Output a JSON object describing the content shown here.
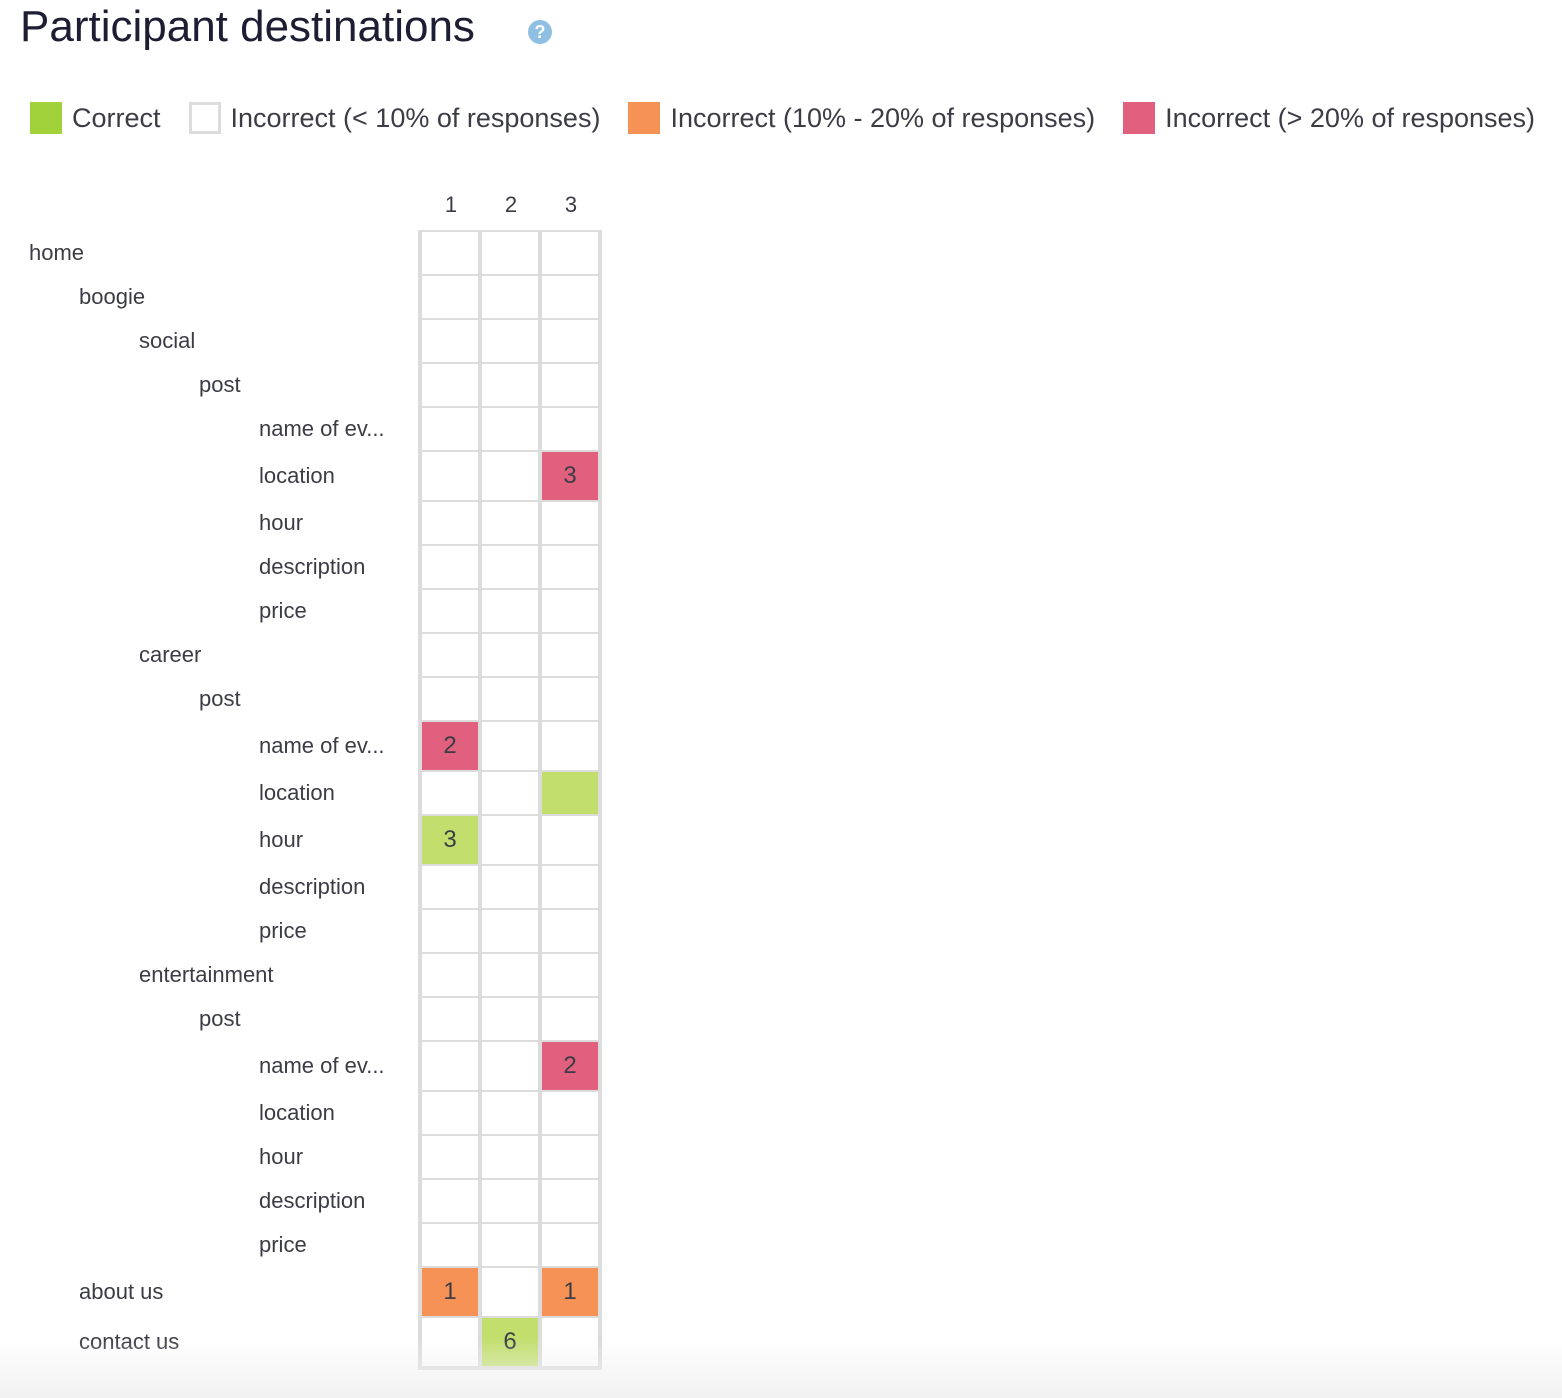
{
  "title": "Participant destinations",
  "help_icon": {
    "glyph": "?",
    "color": "#8fbfe2",
    "icon": "question-circle-icon"
  },
  "legend": [
    {
      "label": "Correct",
      "color": "#a2d23a",
      "outline": false
    },
    {
      "label": "Incorrect (< 10% of responses)",
      "color": "#ffffff",
      "outline": true
    },
    {
      "label": "Incorrect (10% - 20% of responses)",
      "color": "#f79256",
      "outline": false
    },
    {
      "label": "Incorrect (> 20% of responses)",
      "color": "#e0607e",
      "outline": false
    }
  ],
  "columns": [
    "1",
    "2",
    "3"
  ],
  "cell_colors": {
    "correct": "#c2df6d",
    "orange": "#f79256",
    "pink": "#e0607e"
  },
  "rows": [
    {
      "label": "home",
      "level": 0,
      "cells": [
        null,
        null,
        null
      ]
    },
    {
      "label": "boogie",
      "level": 1,
      "cells": [
        null,
        null,
        null
      ]
    },
    {
      "label": "social",
      "level": 2,
      "cells": [
        null,
        null,
        null
      ]
    },
    {
      "label": "post",
      "level": 3,
      "cells": [
        null,
        null,
        null
      ]
    },
    {
      "label": "name of ev...",
      "level": 4,
      "cells": [
        null,
        null,
        null
      ]
    },
    {
      "label": "location",
      "level": 4,
      "cells": [
        null,
        null,
        {
          "value": "3",
          "status": "pink"
        }
      ]
    },
    {
      "label": "hour",
      "level": 4,
      "cells": [
        null,
        null,
        null
      ]
    },
    {
      "label": "description",
      "level": 4,
      "cells": [
        null,
        null,
        null
      ]
    },
    {
      "label": "price",
      "level": 4,
      "cells": [
        null,
        null,
        null
      ]
    },
    {
      "label": "career",
      "level": 2,
      "cells": [
        null,
        null,
        null
      ]
    },
    {
      "label": "post",
      "level": 3,
      "cells": [
        null,
        null,
        null
      ]
    },
    {
      "label": "name of ev...",
      "level": 4,
      "cells": [
        {
          "value": "2",
          "status": "pink"
        },
        null,
        null
      ]
    },
    {
      "label": "location",
      "level": 4,
      "cells": [
        null,
        null,
        {
          "value": "",
          "status": "correct"
        }
      ]
    },
    {
      "label": "hour",
      "level": 4,
      "cells": [
        {
          "value": "3",
          "status": "correct"
        },
        null,
        null
      ]
    },
    {
      "label": "description",
      "level": 4,
      "cells": [
        null,
        null,
        null
      ]
    },
    {
      "label": "price",
      "level": 4,
      "cells": [
        null,
        null,
        null
      ]
    },
    {
      "label": "entertainment",
      "level": 2,
      "cells": [
        null,
        null,
        null
      ]
    },
    {
      "label": "post",
      "level": 3,
      "cells": [
        null,
        null,
        null
      ]
    },
    {
      "label": "name of ev...",
      "level": 4,
      "cells": [
        null,
        null,
        {
          "value": "2",
          "status": "pink"
        }
      ]
    },
    {
      "label": "location",
      "level": 4,
      "cells": [
        null,
        null,
        null
      ]
    },
    {
      "label": "hour",
      "level": 4,
      "cells": [
        null,
        null,
        null
      ]
    },
    {
      "label": "description",
      "level": 4,
      "cells": [
        null,
        null,
        null
      ]
    },
    {
      "label": "price",
      "level": 4,
      "cells": [
        null,
        null,
        null
      ]
    },
    {
      "label": "about us",
      "level": 1,
      "cells": [
        {
          "value": "1",
          "status": "orange"
        },
        null,
        {
          "value": "1",
          "status": "orange"
        }
      ]
    },
    {
      "label": "contact us",
      "level": 1,
      "cells": [
        null,
        {
          "value": "6",
          "status": "correct"
        },
        null
      ]
    }
  ]
}
